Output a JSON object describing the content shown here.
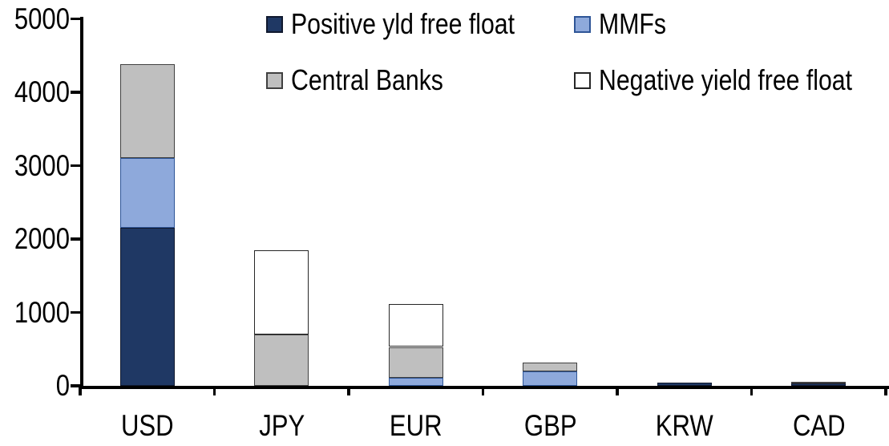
{
  "chart_data": {
    "type": "bar",
    "stacked": true,
    "title": "",
    "xlabel": "",
    "ylabel": "",
    "categories": [
      "USD",
      "JPY",
      "EUR",
      "GBP",
      "KRW",
      "CAD"
    ],
    "series": [
      {
        "name": "Positive yld free float",
        "color": "#1F3864",
        "border_color": "#10192E",
        "values": [
          2150,
          0,
          0,
          0,
          40,
          35
        ]
      },
      {
        "name": "MMFs",
        "color": "#8EA9DB",
        "border_color": "#2E5597",
        "values": [
          950,
          0,
          110,
          200,
          0,
          0
        ]
      },
      {
        "name": "Central Banks",
        "color": "#BFBFBF",
        "border_color": "#404040",
        "values": [
          1280,
          700,
          420,
          120,
          0,
          25
        ]
      },
      {
        "name": "Negative yield free float",
        "color": "#FFFFFF",
        "border_color": "#262626",
        "values": [
          0,
          1150,
          580,
          0,
          0,
          0
        ]
      }
    ],
    "totals": [
      4380,
      1850,
      1110,
      320,
      40,
      60
    ],
    "y_ticks": [
      0,
      1000,
      2000,
      3000,
      4000,
      5000
    ],
    "ylim": [
      0,
      5000
    ],
    "grid": false,
    "legend_position": "top",
    "legend_columns": 2,
    "axis_color": "#000000",
    "background": "#FFFFFF"
  }
}
